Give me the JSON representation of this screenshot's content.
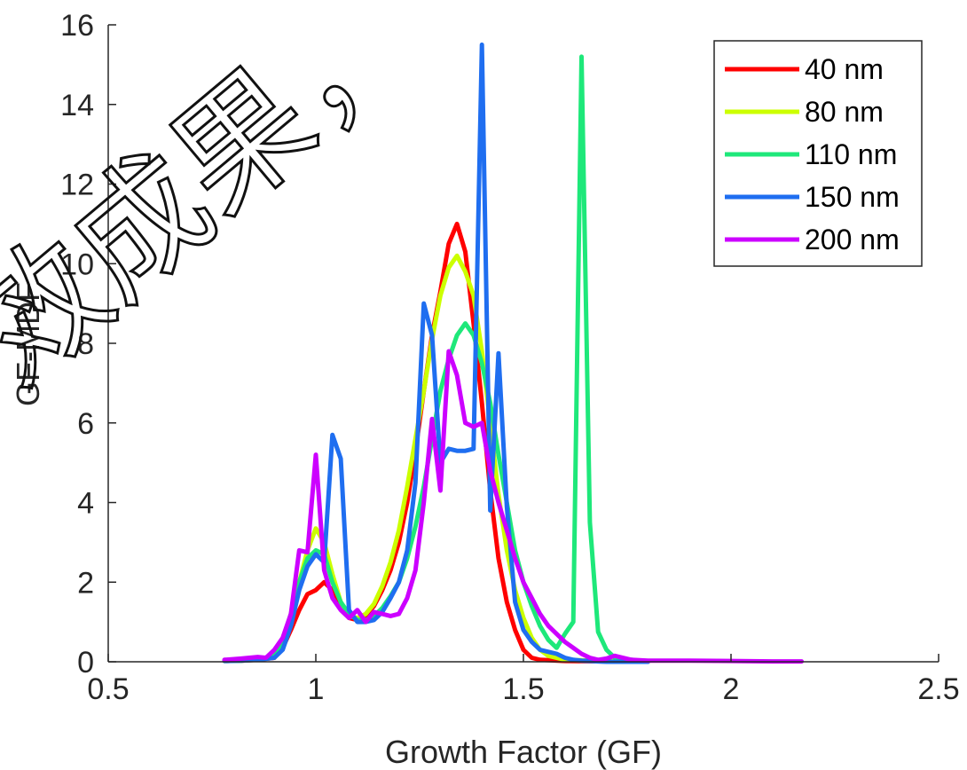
{
  "chart_data": {
    "type": "line",
    "title": "",
    "xlabel": "Growth Factor (GF)",
    "ylabel": "GF-MDF",
    "xlim": [
      0.5,
      2.5
    ],
    "ylim": [
      0,
      16
    ],
    "xticks": [
      0.5,
      1,
      1.5,
      2,
      2.5
    ],
    "xtick_labels": [
      "0.5",
      "1",
      "1.5",
      "2",
      "2.5"
    ],
    "yticks": [
      0,
      2,
      4,
      6,
      8,
      10,
      12,
      14,
      16
    ],
    "ytick_labels": [
      "0",
      "2",
      "4",
      "6",
      "8",
      "10",
      "12",
      "14",
      "16"
    ],
    "grid": false,
    "legend_position": "top-right",
    "watermark_text": "效成果，",
    "series": [
      {
        "name": "40 nm",
        "color": "#ff0000",
        "x": [
          0.78,
          0.82,
          0.86,
          0.9,
          0.92,
          0.94,
          0.96,
          0.98,
          1.0,
          1.02,
          1.04,
          1.06,
          1.08,
          1.1,
          1.12,
          1.14,
          1.16,
          1.18,
          1.2,
          1.22,
          1.24,
          1.26,
          1.28,
          1.3,
          1.32,
          1.34,
          1.36,
          1.38,
          1.4,
          1.42,
          1.44,
          1.46,
          1.48,
          1.5,
          1.52,
          1.54,
          1.6,
          1.7,
          1.8
        ],
        "y": [
          0.02,
          0.03,
          0.05,
          0.1,
          0.35,
          0.8,
          1.3,
          1.7,
          1.8,
          2.0,
          1.8,
          1.4,
          1.1,
          1.05,
          1.15,
          1.4,
          1.8,
          2.3,
          3.0,
          4.0,
          5.3,
          6.8,
          8.2,
          9.3,
          10.5,
          11.0,
          10.3,
          8.5,
          6.5,
          4.3,
          2.6,
          1.5,
          0.8,
          0.3,
          0.1,
          0.05,
          0.02,
          0.01,
          0.0
        ]
      },
      {
        "name": "80 nm",
        "color": "#ccff00",
        "x": [
          0.78,
          0.82,
          0.86,
          0.9,
          0.92,
          0.94,
          0.96,
          0.98,
          1.0,
          1.02,
          1.04,
          1.06,
          1.08,
          1.1,
          1.12,
          1.14,
          1.16,
          1.18,
          1.2,
          1.22,
          1.24,
          1.26,
          1.28,
          1.3,
          1.32,
          1.34,
          1.36,
          1.38,
          1.4,
          1.42,
          1.44,
          1.46,
          1.48,
          1.5,
          1.52,
          1.54,
          1.56,
          1.6,
          1.7,
          1.8
        ],
        "y": [
          0.02,
          0.03,
          0.06,
          0.15,
          0.5,
          1.2,
          2.0,
          2.8,
          3.35,
          3.0,
          2.2,
          1.5,
          1.15,
          1.1,
          1.2,
          1.45,
          1.9,
          2.5,
          3.3,
          4.4,
          5.6,
          6.8,
          8.1,
          9.2,
          9.9,
          10.2,
          9.8,
          9.2,
          7.8,
          6.0,
          4.2,
          2.8,
          1.8,
          1.1,
          0.6,
          0.3,
          0.15,
          0.05,
          0.02,
          0.0
        ]
      },
      {
        "name": "110 nm",
        "color": "#1ee87a",
        "x": [
          0.78,
          0.82,
          0.86,
          0.9,
          0.92,
          0.94,
          0.96,
          0.98,
          1.0,
          1.02,
          1.04,
          1.06,
          1.08,
          1.1,
          1.12,
          1.14,
          1.16,
          1.18,
          1.2,
          1.22,
          1.24,
          1.26,
          1.28,
          1.3,
          1.32,
          1.34,
          1.36,
          1.38,
          1.4,
          1.42,
          1.44,
          1.46,
          1.48,
          1.5,
          1.52,
          1.54,
          1.56,
          1.58,
          1.6,
          1.62,
          1.64,
          1.66,
          1.68,
          1.7,
          1.72,
          1.8
        ],
        "y": [
          0.02,
          0.03,
          0.06,
          0.15,
          0.5,
          1.2,
          2.0,
          2.6,
          2.8,
          2.7,
          2.0,
          1.5,
          1.2,
          1.05,
          1.05,
          1.15,
          1.35,
          1.65,
          2.0,
          2.6,
          3.4,
          4.4,
          5.6,
          6.8,
          7.6,
          8.2,
          8.5,
          8.2,
          7.5,
          6.5,
          5.2,
          4.0,
          2.8,
          2.0,
          1.4,
          0.9,
          0.55,
          0.35,
          0.7,
          1.0,
          15.2,
          3.5,
          0.75,
          0.3,
          0.1,
          0.0
        ]
      },
      {
        "name": "150 nm",
        "color": "#1f6ef0",
        "x": [
          0.78,
          0.82,
          0.86,
          0.9,
          0.92,
          0.94,
          0.96,
          0.98,
          1.0,
          1.02,
          1.04,
          1.06,
          1.08,
          1.1,
          1.12,
          1.14,
          1.16,
          1.18,
          1.2,
          1.22,
          1.24,
          1.26,
          1.28,
          1.3,
          1.32,
          1.34,
          1.36,
          1.38,
          1.4,
          1.42,
          1.44,
          1.46,
          1.48,
          1.5,
          1.52,
          1.54,
          1.56,
          1.58,
          1.6,
          1.62,
          1.64,
          1.66,
          1.68,
          1.7,
          1.74,
          1.8
        ],
        "y": [
          0.02,
          0.03,
          0.05,
          0.1,
          0.3,
          0.9,
          1.8,
          2.4,
          2.7,
          2.5,
          5.7,
          5.1,
          1.3,
          1.0,
          1.0,
          1.05,
          1.25,
          1.6,
          2.0,
          2.8,
          4.5,
          9.0,
          8.2,
          5.0,
          5.35,
          5.3,
          5.3,
          5.35,
          15.5,
          3.8,
          7.75,
          3.9,
          1.5,
          0.8,
          0.5,
          0.3,
          0.25,
          0.2,
          0.1,
          0.05,
          0.03,
          0.02,
          0.01,
          0.0,
          0.0,
          0.0
        ]
      },
      {
        "name": "200 nm",
        "color": "#cc00ff",
        "x": [
          0.78,
          0.82,
          0.86,
          0.88,
          0.9,
          0.92,
          0.94,
          0.96,
          0.98,
          1.0,
          1.02,
          1.04,
          1.06,
          1.08,
          1.1,
          1.12,
          1.14,
          1.16,
          1.18,
          1.2,
          1.22,
          1.24,
          1.26,
          1.28,
          1.3,
          1.32,
          1.34,
          1.36,
          1.38,
          1.4,
          1.42,
          1.44,
          1.46,
          1.48,
          1.5,
          1.52,
          1.54,
          1.56,
          1.58,
          1.6,
          1.62,
          1.64,
          1.66,
          1.68,
          1.7,
          1.72,
          1.74,
          1.76,
          1.8,
          1.9,
          2.0,
          2.1,
          2.17
        ],
        "y": [
          0.05,
          0.08,
          0.12,
          0.1,
          0.3,
          0.6,
          1.2,
          2.8,
          2.75,
          5.2,
          2.3,
          1.6,
          1.3,
          1.1,
          1.3,
          1.0,
          1.25,
          1.2,
          1.15,
          1.2,
          1.6,
          2.3,
          4.0,
          6.1,
          4.3,
          7.8,
          7.2,
          6.0,
          5.9,
          6.0,
          4.8,
          4.0,
          3.3,
          2.6,
          2.0,
          1.6,
          1.2,
          0.9,
          0.7,
          0.5,
          0.35,
          0.2,
          0.1,
          0.05,
          0.08,
          0.15,
          0.1,
          0.05,
          0.03,
          0.03,
          0.02,
          0.01,
          0.01
        ]
      }
    ]
  }
}
